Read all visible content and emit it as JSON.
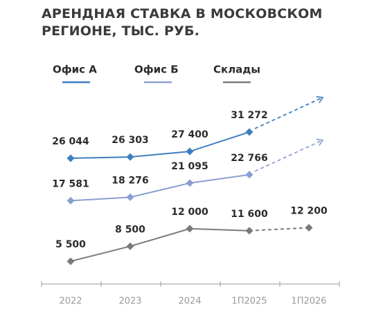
{
  "chart_data": {
    "type": "line",
    "title": "АРЕНДНАЯ СТАВКА В МОСКОВСКОМ РЕГИОНЕ, ТЫС. РУБ.",
    "categories": [
      "2022",
      "2023",
      "2024",
      "1П2025",
      "1П2026"
    ],
    "ylim": [
      0,
      35000
    ],
    "series": [
      {
        "name": "Офис А",
        "color": "#3d7ebf",
        "values": [
          26044,
          26303,
          27400,
          31272,
          null
        ],
        "value_labels": [
          "26 044",
          "26 303",
          "27 400",
          "31 272",
          null
        ]
      },
      {
        "name": "Офис Б",
        "color": "#8a9fd1",
        "values": [
          17581,
          18276,
          21095,
          22766,
          null
        ],
        "value_labels": [
          "17 581",
          "18 276",
          "21 095",
          "22 766",
          null
        ]
      },
      {
        "name": "Склады",
        "color": "#7a7a7a",
        "values": [
          5500,
          8500,
          12000,
          11600,
          12200
        ],
        "value_labels": [
          "5 500",
          "8 500",
          "12 000",
          "11 600",
          "12 200"
        ]
      }
    ]
  }
}
